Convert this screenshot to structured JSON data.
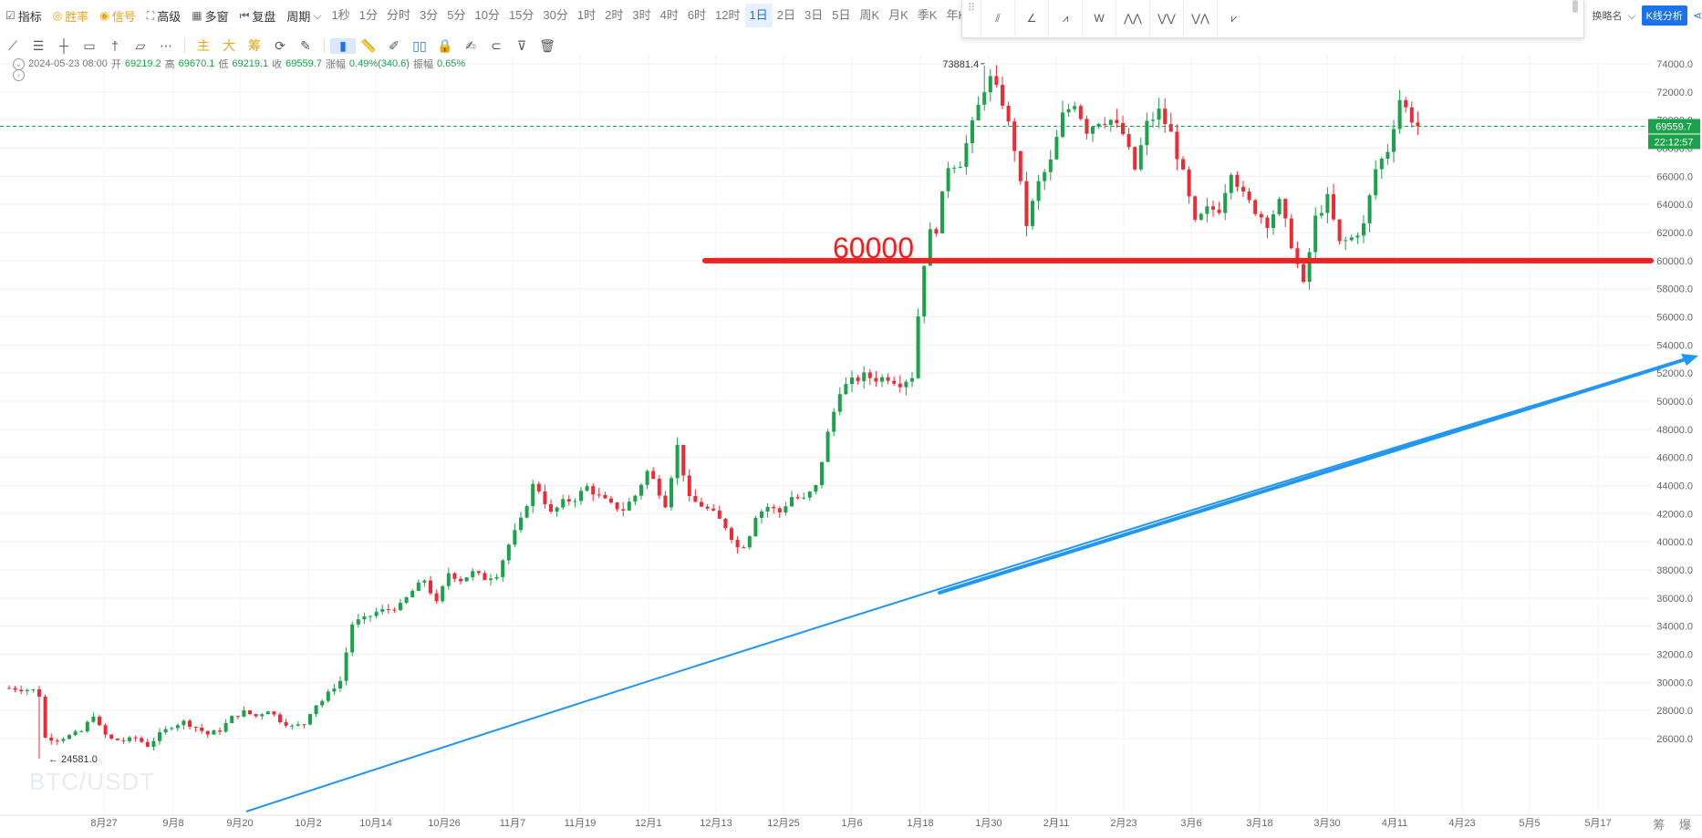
{
  "toolbar": {
    "items": [
      {
        "label": "指标",
        "icon": "indicator-icon",
        "style": "normal"
      },
      {
        "label": "胜率",
        "icon": "target-icon",
        "style": "orange"
      },
      {
        "label": "信号",
        "icon": "signal-icon",
        "style": "orange"
      },
      {
        "label": "高级",
        "icon": "advanced-icon",
        "style": "normal"
      },
      {
        "label": "多窗",
        "icon": "multi-window-icon",
        "style": "normal"
      },
      {
        "label": "复盘",
        "icon": "replay-icon",
        "style": "normal"
      }
    ],
    "period_dropdown": "周期",
    "periods": [
      "1秒",
      "1分",
      "分时",
      "3分",
      "5分",
      "10分",
      "15分",
      "30分",
      "1时",
      "2时",
      "3时",
      "4时",
      "6时",
      "12时",
      "1日",
      "2日",
      "3日",
      "5日",
      "周K",
      "月K",
      "季K",
      "年K"
    ],
    "active_period": "1日",
    "right_label": "换略名",
    "k_analysis": "K线分析"
  },
  "draw_toolbar": {
    "text_tools": [
      "主",
      "大",
      "筹"
    ]
  },
  "info": {
    "date": "2024-05-23 08:00",
    "open_label": "开",
    "open": "69219.2",
    "high_label": "高",
    "high": "69670.1",
    "low_label": "低",
    "low": "69219.1",
    "close_label": "收",
    "close": "69559.7",
    "change_label": "涨幅",
    "change": "0.49%(340.6)",
    "amp_label": "振幅",
    "amp": "0.65%"
  },
  "watermark": "BTC/USDT",
  "bottom_right": "筹 爆",
  "colors": {
    "up": "#1aa34a",
    "down": "#ee2a35",
    "hline": "#ee2020",
    "trend": "#2196f3",
    "price_badge": "#1aa34a",
    "grid": "#eef0f3"
  },
  "chart_data": {
    "type": "candlestick",
    "ylim": [
      24000,
      74400
    ],
    "y_ticks": [
      26000,
      28000,
      30000,
      32000,
      34000,
      36000,
      38000,
      40000,
      42000,
      44000,
      46000,
      48000,
      50000,
      52000,
      54000,
      56000,
      58000,
      60000,
      62000,
      64000,
      66000,
      68000,
      70000,
      72000,
      74000
    ],
    "x_ticks": [
      "8月27",
      "9月8",
      "9月20",
      "10月2",
      "10月14",
      "10月26",
      "11月7",
      "11月19",
      "12月1",
      "12月13",
      "12月25",
      "1月6",
      "1月18",
      "1月30",
      "2月11",
      "2月23",
      "3月6",
      "3月18",
      "3月30",
      "4月11",
      "4月23",
      "5月5",
      "5月17"
    ],
    "days": 280,
    "annotations": {
      "high_label": "73881.4",
      "low_label": "24581.0",
      "hline_value": 60000,
      "hline_label": "60000",
      "current_price": "69559.7",
      "countdown": "22:12:57",
      "current_value": 69559.7
    },
    "key_closes": [
      [
        0,
        29600
      ],
      [
        4,
        29520
      ],
      [
        8,
        29450
      ],
      [
        10,
        29080
      ],
      [
        11,
        26100
      ],
      [
        12,
        26050
      ],
      [
        16,
        25950
      ],
      [
        20,
        26200
      ],
      [
        24,
        26500
      ],
      [
        28,
        27700
      ],
      [
        31,
        26400
      ],
      [
        34,
        25950
      ],
      [
        38,
        25850
      ],
      [
        42,
        26050
      ],
      [
        46,
        25500
      ],
      [
        50,
        26300
      ],
      [
        54,
        26900
      ],
      [
        58,
        27200
      ],
      [
        62,
        26800
      ],
      [
        66,
        26300
      ],
      [
        70,
        26600
      ],
      [
        74,
        27500
      ],
      [
        78,
        27900
      ],
      [
        82,
        27600
      ],
      [
        86,
        28050
      ],
      [
        90,
        27300
      ],
      [
        94,
        26850
      ],
      [
        98,
        27050
      ],
      [
        101,
        28300
      ],
      [
        104,
        28700
      ],
      [
        108,
        29700
      ],
      [
        111,
        30300
      ],
      [
        113,
        34000
      ],
      [
        115,
        34300
      ],
      [
        118,
        34500
      ],
      [
        122,
        35000
      ],
      [
        126,
        35200
      ],
      [
        130,
        35450
      ],
      [
        134,
        36500
      ],
      [
        138,
        37300
      ],
      [
        142,
        35600
      ],
      [
        146,
        37800
      ],
      [
        150,
        37300
      ],
      [
        154,
        37800
      ],
      [
        158,
        37400
      ],
      [
        162,
        37700
      ],
      [
        166,
        39800
      ],
      [
        170,
        41500
      ],
      [
        174,
        44000
      ],
      [
        176,
        43700
      ],
      [
        180,
        42000
      ],
      [
        184,
        42800
      ],
      [
        188,
        43100
      ],
      [
        192,
        43900
      ],
      [
        196,
        43200
      ],
      [
        200,
        42600
      ],
      [
        204,
        42300
      ],
      [
        208,
        43300
      ],
      [
        212,
        45000
      ],
      [
        214,
        44400
      ],
      [
        218,
        42700
      ],
      [
        222,
        46800
      ],
      [
        226,
        43000
      ],
      [
        230,
        42600
      ],
      [
        234,
        42000
      ],
      [
        238,
        41100
      ],
      [
        242,
        39600
      ],
      [
        245,
        39900
      ],
      [
        248,
        41900
      ],
      [
        252,
        42500
      ],
      [
        256,
        42100
      ],
      [
        260,
        43200
      ],
      [
        264,
        43000
      ],
      [
        268,
        43900
      ],
      [
        272,
        47700
      ],
      [
        276,
        50800
      ],
      [
        280,
        51400
      ],
      [
        284,
        51800
      ],
      [
        288,
        51600
      ],
      [
        292,
        51700
      ],
      [
        296,
        51300
      ],
      [
        300,
        51800
      ],
      [
        302,
        56100
      ],
      [
        305,
        61800
      ],
      [
        308,
        62300
      ],
      [
        312,
        66800
      ],
      [
        316,
        67000
      ],
      [
        320,
        69600
      ],
      [
        324,
        72300
      ],
      [
        326,
        72900
      ],
      [
        330,
        71300
      ],
      [
        334,
        68000
      ],
      [
        338,
        62600
      ],
      [
        342,
        65500
      ],
      [
        346,
        67000
      ],
      [
        350,
        70300
      ],
      [
        354,
        71300
      ],
      [
        358,
        69300
      ],
      [
        362,
        70000
      ],
      [
        366,
        70000
      ],
      [
        370,
        69000
      ],
      [
        374,
        66500
      ],
      [
        378,
        69700
      ],
      [
        382,
        70600
      ],
      [
        386,
        69000
      ],
      [
        390,
        66100
      ],
      [
        394,
        62600
      ],
      [
        398,
        63600
      ],
      [
        402,
        63700
      ],
      [
        406,
        66500
      ],
      [
        410,
        64600
      ],
      [
        414,
        63600
      ],
      [
        418,
        62700
      ],
      [
        422,
        64100
      ],
      [
        426,
        61200
      ],
      [
        430,
        58200
      ],
      [
        434,
        63000
      ],
      [
        438,
        64400
      ],
      [
        442,
        61200
      ],
      [
        446,
        61600
      ],
      [
        450,
        62500
      ],
      [
        454,
        66500
      ],
      [
        458,
        67900
      ],
      [
        462,
        71500
      ],
      [
        466,
        70100
      ],
      [
        468,
        69560
      ]
    ]
  }
}
